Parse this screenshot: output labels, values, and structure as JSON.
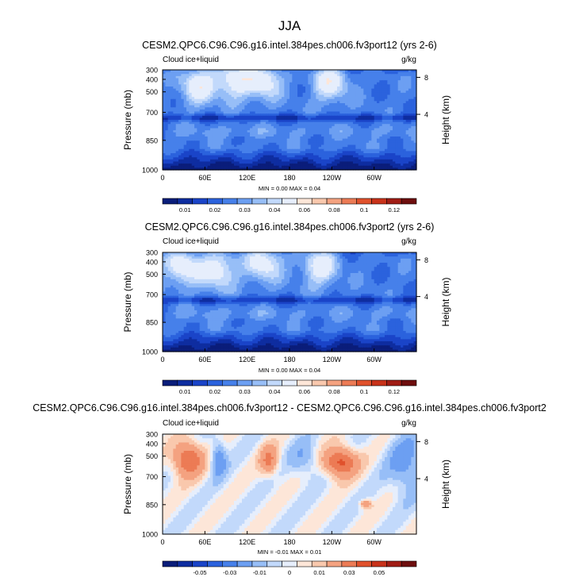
{
  "title": "JJA",
  "chart_data": [
    {
      "type": "heatmap",
      "title": "CESM2.QPC6.C96.C96.g16.intel.384pes.ch006.fv3port12 (yrs 2-6)",
      "left_label": "Cloud ice+liquid",
      "units": "g/kg",
      "ylabel": "Pressure (mb)",
      "ylabel2": "Height (km)",
      "xticks": [
        "0",
        "60E",
        "120E",
        "180",
        "120W",
        "60W"
      ],
      "yticks": [
        "300",
        "400",
        "500",
        "700",
        "850",
        "1000"
      ],
      "yticks2": [
        "8",
        "4"
      ],
      "minmax": "MIN =   0.00   MAX =   0.04",
      "colorbar_labels": [
        "0.01",
        "0.02",
        "0.03",
        "0.04",
        "0.06",
        "0.08",
        "0.1",
        "0.12"
      ],
      "colors": [
        "#0a1d7a",
        "#0e2da0",
        "#1a44c8",
        "#2b62dd",
        "#4680ea",
        "#6c9ff2",
        "#97bef7",
        "#c2d9fb",
        "#e6eefc",
        "#fde6d8",
        "#f9c8ad",
        "#f4a280",
        "#ec7b55",
        "#e0512c",
        "#c8321a",
        "#a01c14",
        "#6e0e0e"
      ],
      "style": "base1"
    },
    {
      "type": "heatmap",
      "title": "CESM2.QPC6.C96.C96.g16.intel.384pes.ch006.fv3port2 (yrs 2-6)",
      "left_label": "Cloud ice+liquid",
      "units": "g/kg",
      "ylabel": "Pressure (mb)",
      "ylabel2": "Height (km)",
      "xticks": [
        "0",
        "60E",
        "120E",
        "180",
        "120W",
        "60W"
      ],
      "yticks": [
        "300",
        "400",
        "500",
        "700",
        "850",
        "1000"
      ],
      "yticks2": [
        "8",
        "4"
      ],
      "minmax": "MIN =   0.00   MAX =   0.04",
      "colorbar_labels": [
        "0.01",
        "0.02",
        "0.03",
        "0.04",
        "0.06",
        "0.08",
        "0.1",
        "0.12"
      ],
      "colors": [
        "#0a1d7a",
        "#0e2da0",
        "#1a44c8",
        "#2b62dd",
        "#4680ea",
        "#6c9ff2",
        "#97bef7",
        "#c2d9fb",
        "#e6eefc",
        "#fde6d8",
        "#f9c8ad",
        "#f4a280",
        "#ec7b55",
        "#e0512c",
        "#c8321a",
        "#a01c14",
        "#6e0e0e"
      ],
      "style": "base2"
    },
    {
      "type": "heatmap",
      "title": "CESM2.QPC6.C96.C96.g16.intel.384pes.ch006.fv3port12 - CESM2.QPC6.C96.C96.g16.intel.384pes.ch006.fv3port2",
      "left_label": "Cloud ice+liquid",
      "units": "g/kg",
      "ylabel": "Pressure (mb)",
      "ylabel2": "Height (km)",
      "xticks": [
        "0",
        "60E",
        "120E",
        "180",
        "120W",
        "60W"
      ],
      "yticks": [
        "300",
        "400",
        "500",
        "700",
        "850",
        "1000"
      ],
      "yticks2": [
        "8",
        "4"
      ],
      "minmax": "MIN =  -0.01   MAX =   0.01",
      "colorbar_labels": [
        "-0.05",
        "-0.03",
        "-0.01",
        "0",
        "0.01",
        "0.03",
        "0.05"
      ],
      "colors": [
        "#0a1d7a",
        "#0e2da0",
        "#1a44c8",
        "#2b62dd",
        "#4680ea",
        "#6c9ff2",
        "#97bef7",
        "#c2d9fb",
        "#e6eefc",
        "#fde6d8",
        "#f9c8ad",
        "#f4a280",
        "#ec7b55",
        "#e0512c",
        "#c8321a",
        "#a01c14",
        "#6e0e0e"
      ],
      "style": "diff"
    }
  ]
}
